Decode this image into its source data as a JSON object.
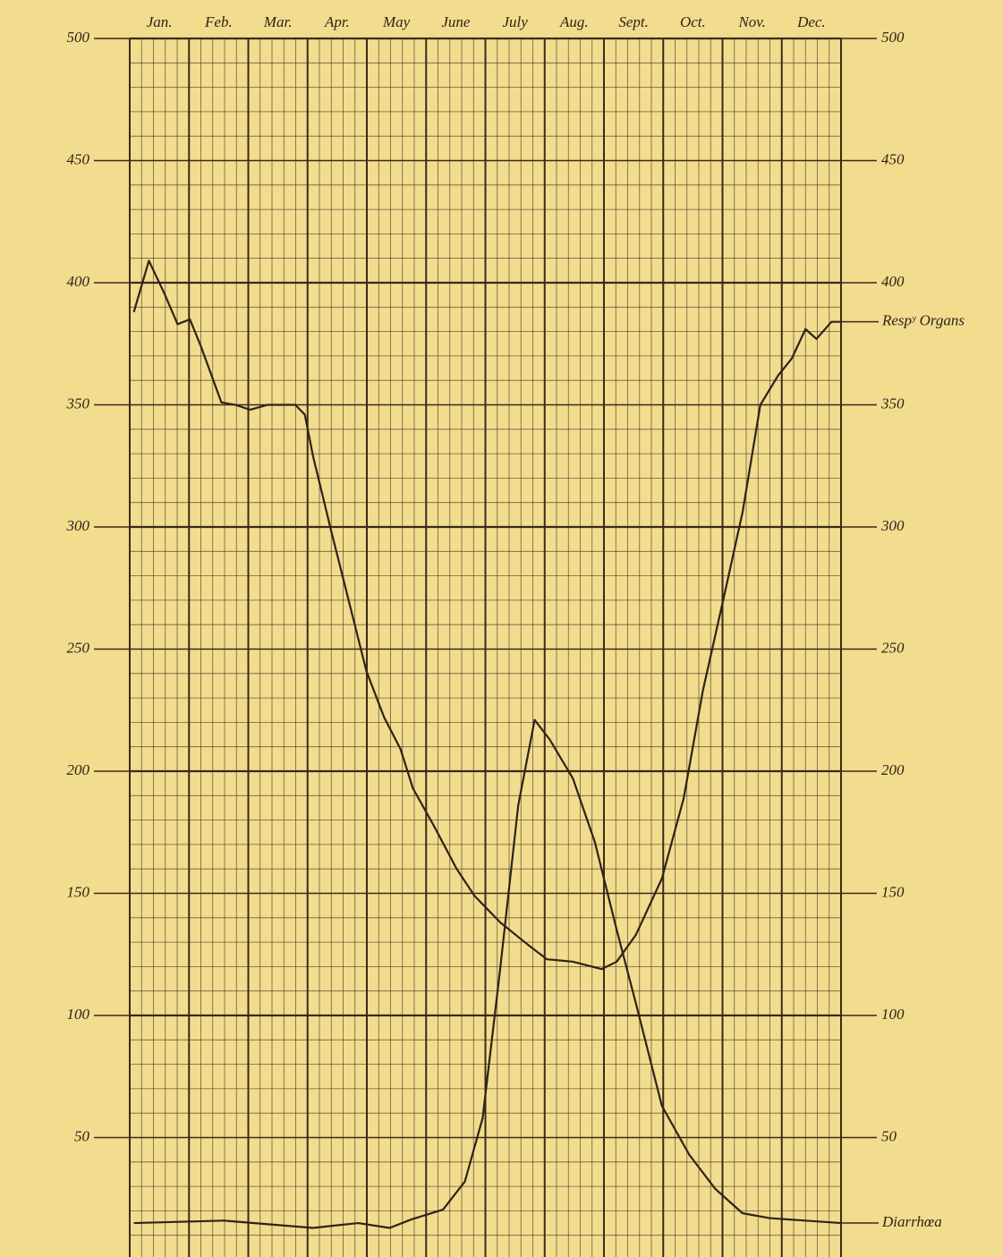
{
  "chart_data": {
    "type": "line",
    "categories": [
      "Jan.",
      "Feb.",
      "Mar.",
      "Apr.",
      "May",
      "June",
      "July",
      "Aug.",
      "Sept.",
      "Oct.",
      "Nov.",
      "Dec."
    ],
    "xlim": [
      0,
      52
    ],
    "ylim": [
      0,
      500
    ],
    "yticks": [
      50,
      100,
      150,
      200,
      250,
      300,
      350,
      400,
      450,
      500
    ],
    "y2lim": [
      0,
      500
    ],
    "y2ticks": [
      50,
      100,
      150,
      200,
      250,
      300,
      350,
      400,
      450,
      500
    ],
    "grid": true,
    "series": [
      {
        "name": "Respʸ Organs",
        "color": "#2e2318",
        "x": [
          0.3,
          1.4,
          2.5,
          3.5,
          4.4,
          5.2,
          6.7,
          7.7,
          8.8,
          10.1,
          12.1,
          12.8,
          13.4,
          14.7,
          16.0,
          17.3,
          18.6,
          19.8,
          20.7,
          22.2,
          23.9,
          25.2,
          27.1,
          29.1,
          30.5,
          32.4,
          34.5,
          35.6,
          37.0,
          38.9,
          40.5,
          41.9,
          43.5,
          44.8,
          46.1,
          47.4,
          48.4,
          49.4,
          50.2,
          51.3,
          52
        ],
        "values": [
          388,
          409,
          396,
          383,
          385,
          374,
          351,
          350,
          348,
          350,
          350,
          346,
          329,
          299,
          270,
          241,
          222,
          209,
          193,
          178,
          160,
          149,
          138,
          129,
          123,
          122,
          119,
          122,
          133,
          156,
          189,
          233,
          273,
          306,
          350,
          362,
          369,
          381,
          377,
          384,
          384
        ]
      },
      {
        "name": "Diarrhœa",
        "color": "#2e2318",
        "x": [
          0.3,
          6.9,
          13.4,
          16.7,
          19.0,
          20.6,
          22.9,
          24.5,
          25.8,
          27.1,
          28.4,
          29.6,
          30.7,
          32.4,
          34.0,
          35.6,
          37.0,
          38.9,
          40.9,
          42.8,
          44.8,
          46.8,
          49.4,
          52
        ],
        "values": [
          15,
          16,
          13,
          15,
          13,
          16.5,
          20.5,
          32,
          58,
          120,
          186,
          221,
          213,
          197,
          171,
          135,
          105,
          63,
          43,
          29,
          19,
          17,
          16,
          15
        ]
      }
    ]
  }
}
